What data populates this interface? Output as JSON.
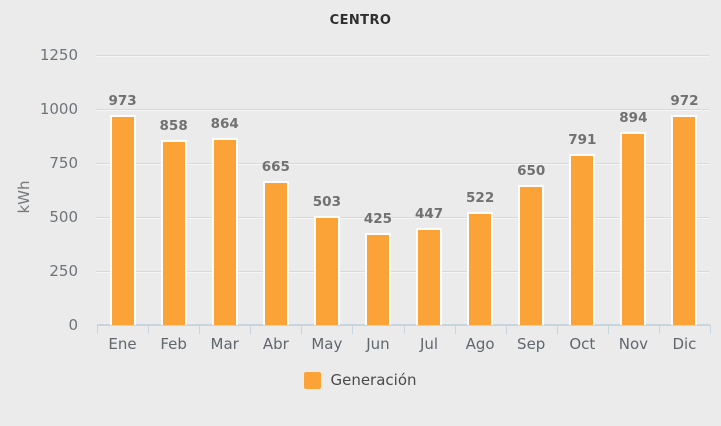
{
  "page": {
    "background": "#ebebeb"
  },
  "chart_data": {
    "type": "bar",
    "title": "CENTRO",
    "xlabel": "",
    "ylabel": "kWh",
    "categories": [
      "Ene",
      "Feb",
      "Mar",
      "Abr",
      "May",
      "Jun",
      "Jul",
      "Ago",
      "Sep",
      "Oct",
      "Nov",
      "Dic"
    ],
    "series": [
      {
        "name": "Generación",
        "color": "#fca338",
        "values": [
          973,
          858,
          864,
          665,
          503,
          425,
          447,
          522,
          650,
          791,
          894,
          972
        ]
      }
    ],
    "ylim": [
      0,
      1250
    ],
    "yticks": [
      0,
      250,
      500,
      750,
      1000,
      1250
    ],
    "grid": true,
    "value_labels": true,
    "legend_position": "bottom"
  },
  "colors": {
    "bar": "#fca338",
    "bar_border": "#fdfdfd",
    "axis_line": "#c7d5df",
    "gridline": "#d9d9d9",
    "title_text": "#2f2f2f",
    "tick_text": "#6e7478",
    "value_text": "#717171",
    "background": "#ebebeb"
  }
}
